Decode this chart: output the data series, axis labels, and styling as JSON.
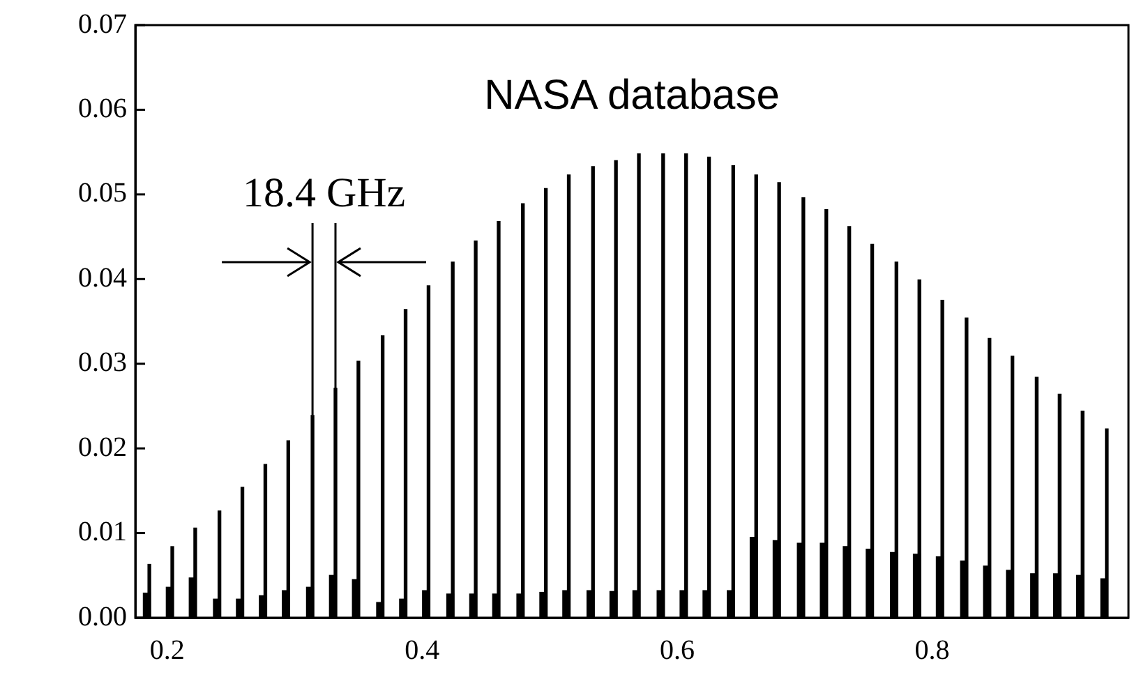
{
  "chart_data": {
    "type": "bar",
    "annotations": [
      "NASA database",
      {
        "text": "18.4 GHz",
        "x": 0.332,
        "y": 0.0271
      }
    ],
    "series": [
      {
        "color": "#000000",
        "x": [
          0.184,
          0.202,
          0.22,
          0.239,
          0.257,
          0.275,
          0.293,
          0.312,
          0.33,
          0.348,
          0.367,
          0.385,
          0.403,
          0.422,
          0.44,
          0.458,
          0.477,
          0.495,
          0.513,
          0.532,
          0.55,
          0.568,
          0.587,
          0.605,
          0.623,
          0.642,
          0.66,
          0.678,
          0.697,
          0.715,
          0.733,
          0.751,
          0.77,
          0.788,
          0.806,
          0.825,
          0.843,
          0.861,
          0.88,
          0.898,
          0.916,
          0.935
        ],
        "values": [
          0.0029,
          0.0036,
          0.0047,
          0.0022,
          0.0022,
          0.0026,
          0.0032,
          0.0036,
          0.005,
          0.0045,
          0.0018,
          0.0022,
          0.0032,
          0.0028,
          0.0028,
          0.0028,
          0.0028,
          0.003,
          0.0032,
          0.0032,
          0.0031,
          0.0032,
          0.0032,
          0.0032,
          0.0032,
          0.0032,
          0.0095,
          0.0091,
          0.0088,
          0.0088,
          0.0084,
          0.0081,
          0.0077,
          0.0075,
          0.0072,
          0.0067,
          0.0061,
          0.0056,
          0.0052,
          0.0052,
          0.005,
          0.0046
        ]
      },
      {
        "color": "#000000",
        "x": [
          0.186,
          0.204,
          0.222,
          0.241,
          0.259,
          0.277,
          0.295,
          0.314,
          0.332,
          0.35,
          0.369,
          0.387,
          0.405,
          0.424,
          0.442,
          0.46,
          0.479,
          0.497,
          0.515,
          0.534,
          0.552,
          0.57,
          0.589,
          0.607,
          0.625,
          0.644,
          0.662,
          0.68,
          0.699,
          0.717,
          0.735,
          0.753,
          0.772,
          0.79,
          0.808,
          0.827,
          0.845,
          0.863,
          0.882,
          0.9,
          0.918,
          0.937
        ],
        "values": [
          0.0063,
          0.0084,
          0.0106,
          0.0126,
          0.0154,
          0.0181,
          0.0209,
          0.0239,
          0.0271,
          0.0303,
          0.0333,
          0.0364,
          0.0392,
          0.042,
          0.0445,
          0.0468,
          0.0489,
          0.0507,
          0.0523,
          0.0533,
          0.054,
          0.0548,
          0.0548,
          0.0548,
          0.0544,
          0.0534,
          0.0523,
          0.0514,
          0.0496,
          0.0482,
          0.0462,
          0.0441,
          0.042,
          0.0399,
          0.0375,
          0.0354,
          0.033,
          0.0309,
          0.0284,
          0.0264,
          0.0244,
          0.0223
        ]
      }
    ],
    "xlim": [
      0.175,
      0.954
    ],
    "xticks": [
      0.2,
      0.4,
      0.6,
      0.8
    ],
    "ylim": [
      0,
      0.07
    ],
    "yticks": [
      {
        "value": 0,
        "label": "0.00"
      },
      {
        "value": 0.01,
        "label": "0.01"
      },
      {
        "value": 0.02,
        "label": "0.02"
      },
      {
        "value": 0.03,
        "label": "0.03"
      },
      {
        "value": 0.04,
        "label": "0.04"
      },
      {
        "value": 0.05,
        "label": "0.05"
      },
      {
        "value": 0.06,
        "label": "0.06"
      },
      {
        "value": 0.07,
        "label": "0.07"
      }
    ],
    "grid": false,
    "legend": false
  }
}
